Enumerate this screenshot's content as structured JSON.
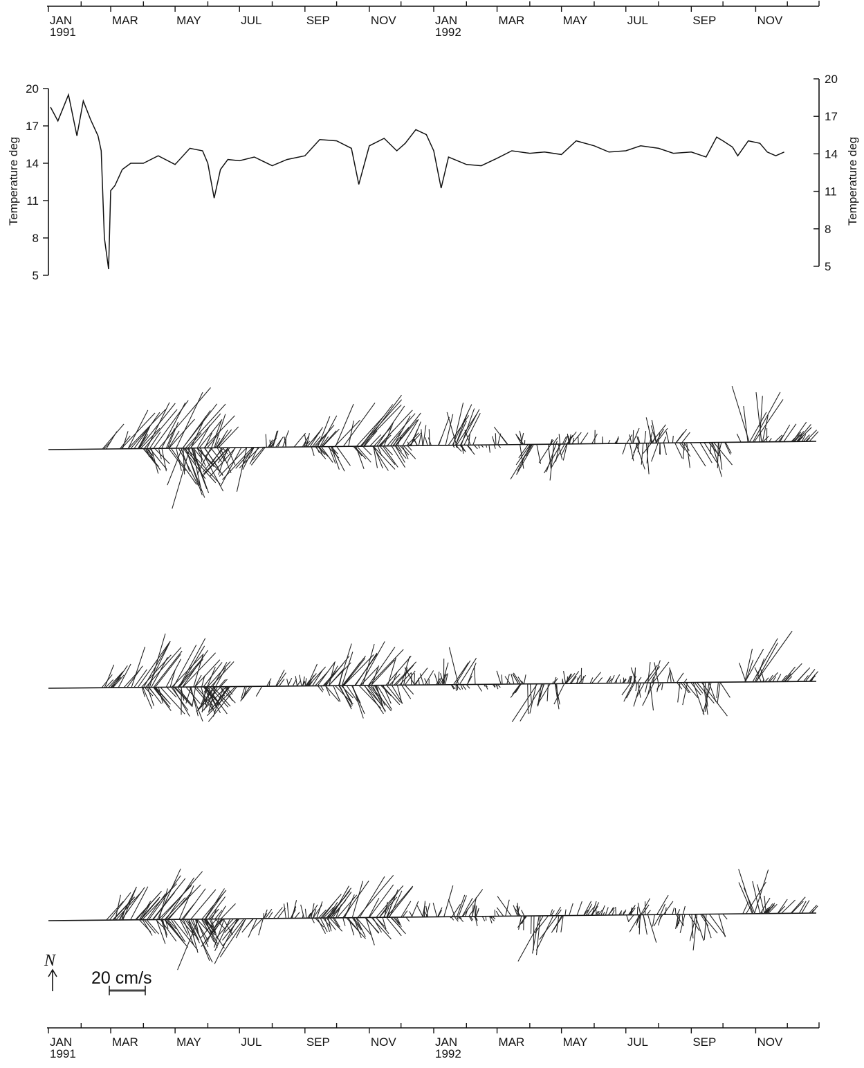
{
  "chart_data": {
    "type": "line",
    "time_axis": {
      "ticks": [
        {
          "label": "JAN",
          "year": "1991"
        },
        {
          "label": "MAR"
        },
        {
          "label": "MAY"
        },
        {
          "label": "JUL"
        },
        {
          "label": "SEP"
        },
        {
          "label": "NOV"
        },
        {
          "label": "JAN",
          "year": "1992"
        },
        {
          "label": "MAR"
        },
        {
          "label": "MAY"
        },
        {
          "label": "JUL"
        },
        {
          "label": "SEP"
        },
        {
          "label": "NOV"
        }
      ]
    },
    "temperature": {
      "ylabel": "Temperature deg",
      "ylim": [
        5,
        20
      ],
      "yticks": [
        20,
        17,
        14,
        11,
        8,
        5
      ],
      "series": [
        {
          "x": [
            "1991-01-03",
            "1991-01-10",
            "1991-01-20",
            "1991-01-28",
            "1991-02-03",
            "1991-02-10",
            "1991-02-17",
            "1991-02-20",
            "1991-02-23",
            "1991-02-27",
            "1991-03-01",
            "1991-03-05",
            "1991-03-12",
            "1991-03-20",
            "1991-04-01",
            "1991-04-15",
            "1991-05-01",
            "1991-05-15",
            "1991-05-27",
            "1991-06-01",
            "1991-06-07",
            "1991-06-13",
            "1991-06-20",
            "1991-07-01",
            "1991-07-15",
            "1991-08-01",
            "1991-08-15",
            "1991-09-01",
            "1991-09-15",
            "1991-10-01",
            "1991-10-15",
            "1991-10-22",
            "1991-11-01",
            "1991-11-15",
            "1991-11-27",
            "1991-12-05",
            "1991-12-15",
            "1991-12-25",
            "1992-01-01",
            "1992-01-08",
            "1992-01-15",
            "1992-02-01",
            "1992-02-15",
            "1992-03-01",
            "1992-03-15",
            "1992-04-01",
            "1992-04-15",
            "1992-05-01",
            "1992-05-15",
            "1992-06-01",
            "1992-06-15",
            "1992-07-01",
            "1992-07-15",
            "1992-08-01",
            "1992-08-15",
            "1992-09-01",
            "1992-09-15",
            "1992-09-25",
            "1992-10-01",
            "1992-10-10",
            "1992-10-15",
            "1992-10-25",
            "1992-11-05",
            "1992-11-12",
            "1992-11-20",
            "1992-11-28"
          ],
          "values": [
            18.5,
            17.4,
            19.5,
            16.2,
            19.0,
            17.5,
            16.2,
            15.0,
            8.0,
            5.5,
            11.8,
            12.2,
            13.5,
            14.0,
            14.0,
            14.6,
            13.9,
            15.2,
            15.0,
            14.0,
            11.2,
            13.5,
            14.3,
            14.2,
            14.5,
            13.8,
            14.3,
            14.6,
            15.9,
            15.8,
            15.2,
            12.3,
            15.4,
            16.0,
            15.0,
            15.6,
            16.7,
            16.3,
            15.0,
            12.0,
            14.5,
            13.9,
            13.8,
            14.4,
            15.0,
            14.8,
            14.9,
            14.7,
            15.8,
            15.4,
            14.9,
            15.0,
            15.4,
            15.2,
            14.8,
            14.9,
            14.5,
            16.1,
            15.8,
            15.3,
            14.6,
            15.8,
            15.6,
            14.9,
            14.6,
            14.9
          ]
        }
      ]
    },
    "current_vectors": {
      "panels": 3,
      "north": "N",
      "scale_label": "20 cm/s"
    }
  }
}
